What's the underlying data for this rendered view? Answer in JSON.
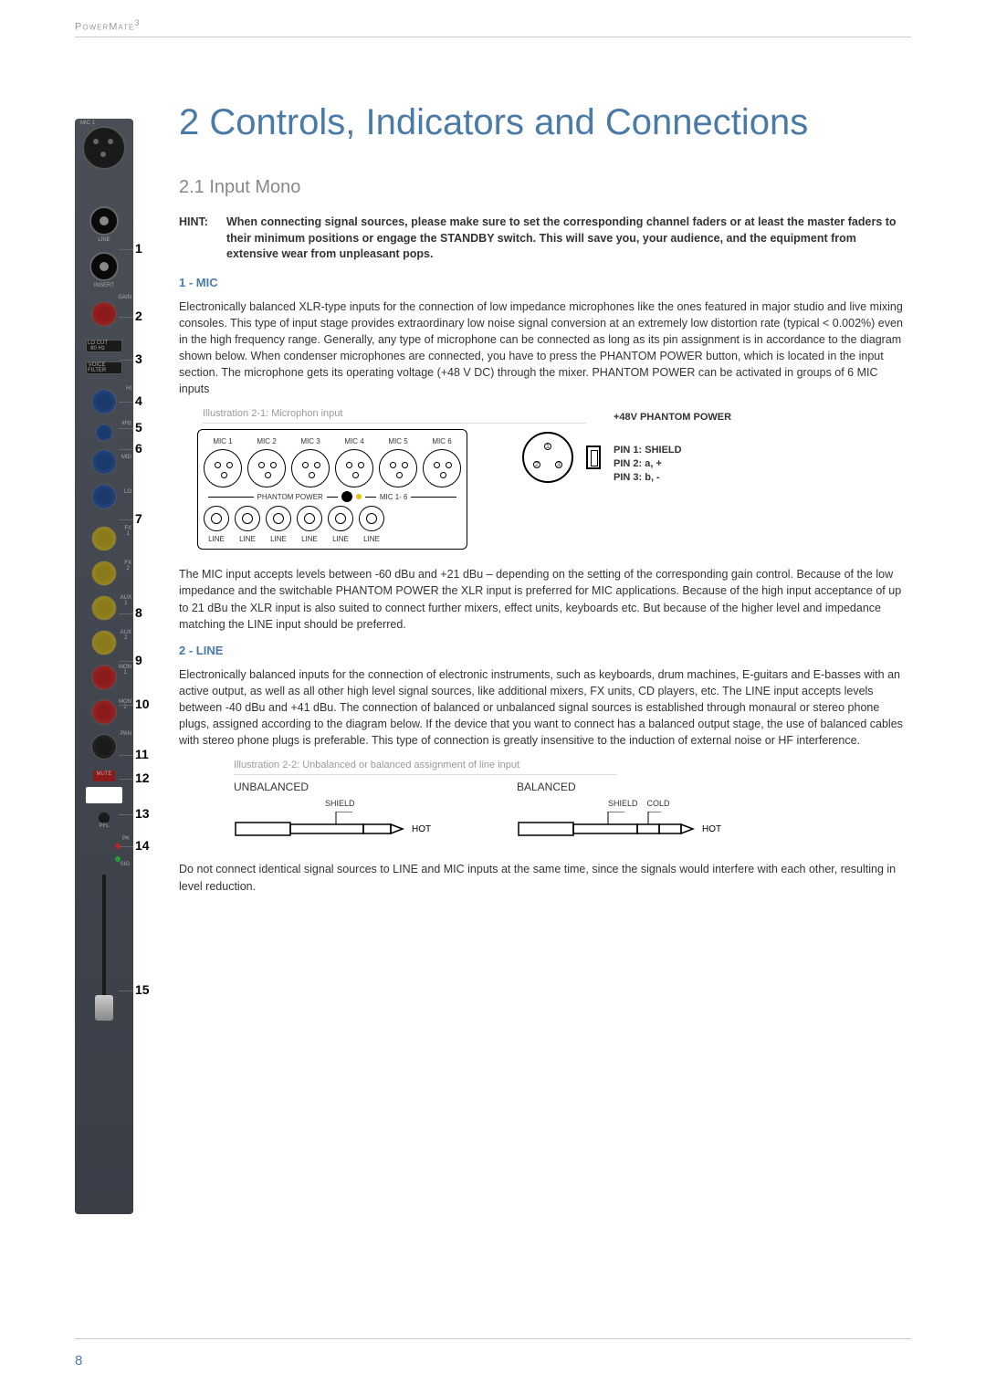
{
  "header": {
    "product": "PowerMate",
    "sup": "3"
  },
  "chapter": {
    "title": "2  Controls, Indicators and Connections"
  },
  "section": {
    "title": "2.1 Input Mono"
  },
  "hint": {
    "label": "HINT:",
    "text": "When connecting signal sources, please make sure to set the corresponding channel faders or at least the master faders to their minimum positions or engage the STANDBY switch. This will save you, your audience, and the equipment from extensive wear from unpleasant pops."
  },
  "s1": {
    "heading": "1 - MIC",
    "p1": "Electronically balanced XLR-type inputs for the connection of low impedance microphones like the ones featured in major studio and live mixing consoles. This type of input stage provides extraordinary low noise signal conversion at an extremely low distortion rate (typical < 0.002%) even in the high frequency range. Generally, any type of microphone can be connected as long as its pin assignment is in accordance to the diagram shown below. When condenser microphones are connected, you have to press the PHANTOM POWER button, which is located in the input section. The microphone gets its operating voltage (+48 V DC) through the mixer. PHANTOM POWER can be activated in groups of 6 MIC inputs",
    "illus_label": "Illustration 2-1: Microphon input",
    "mic_labels": [
      "MIC 1",
      "MIC 2",
      "MIC 3",
      "MIC 4",
      "MIC 5",
      "MIC 6"
    ],
    "line_label": "LINE",
    "phantom": "PHANTOM POWER",
    "mic16": "MIC 1- 6",
    "phantom_power": "+48V PHANTOM POWER",
    "pin1": "PIN 1: SHIELD",
    "pin2": "PIN 2: a, +",
    "pin3": "PIN 3: b, -",
    "p2": "The MIC input accepts levels between -60 dBu and +21 dBu – depending on the setting of the corresponding gain control. Because of the low impedance and the switchable PHANTOM POWER the XLR input is preferred for MIC applications. Because of the high input acceptance of up to 21 dBu the XLR input is also suited to connect further mixers, effect units, keyboards etc. But because of the higher level and impedance matching the LINE input should be preferred."
  },
  "s2": {
    "heading": "2 - LINE",
    "p1": "Electronically balanced inputs for the connection of electronic instruments, such as keyboards, drum machines, E-guitars and E-basses with an active output, as well as all other high level signal sources, like additional mixers, FX units, CD players, etc. The LINE input accepts levels between -40 dBu and +41 dBu. The connection of balanced or unbalanced signal sources is established through monaural or stereo phone plugs, assigned according to the diagram below. If the device that you want to connect has a balanced output stage, the use of balanced cables with stereo phone plugs is preferable. This type of connection is greatly insensitive to the induction of external noise or HF interference.",
    "illus_label": "Illustration 2-2: Unbalanced or balanced assignment of line input",
    "unbalanced": "UNBALANCED",
    "balanced": "BALANCED",
    "shield": "SHIELD",
    "cold": "COLD",
    "hot": "HOT",
    "p2": "Do not connect identical signal sources to LINE and MIC inputs at the same time, since the signals would interfere with each other, resulting in level reduction."
  },
  "strip_labels": [
    "1",
    "2",
    "3",
    "4",
    "5",
    "6",
    "7",
    "8",
    "9",
    "10",
    "11",
    "12",
    "13",
    "14",
    "15"
  ],
  "strip_positions": [
    156,
    242,
    296,
    350,
    384,
    410,
    500,
    620,
    680,
    736,
    800,
    830,
    876,
    916,
    1100
  ],
  "strip_text": {
    "mic": "MIC 1",
    "line": "LINE",
    "insert": "INSERT",
    "gain": "GAIN",
    "locut": "LO CUT\n80 Hz",
    "voice": "VOICE\nFILTER",
    "hi": "HI",
    "mid": "MID",
    "lo": "LO",
    "khz": "kHz",
    "fx1": "FX\n1",
    "fx2": "FX\n2",
    "aux1": "AUX\n1",
    "aux2": "AUX\n2",
    "mon1": "MON\n1",
    "mon2": "MON\n2",
    "pan": "PAN",
    "mute": "MUTE",
    "pfl": "PFL",
    "pk": "PK",
    "sig": "SIG"
  },
  "page": "8",
  "colors": {
    "accent": "#4a7aa8",
    "muted": "#888888",
    "body": "#333333"
  }
}
